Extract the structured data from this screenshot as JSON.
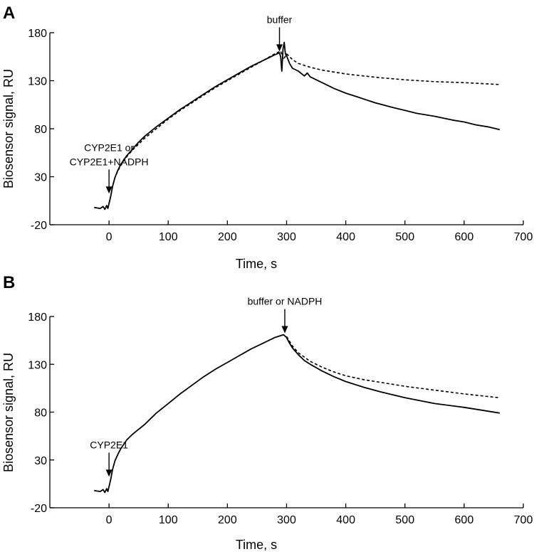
{
  "chart_data": [
    {
      "type": "line",
      "panel_label": "A",
      "title": "",
      "xlabel": "Time, s",
      "ylabel": "Biosensor signal, RU",
      "xlim": [
        -100,
        700
      ],
      "ylim": [
        -20,
        180
      ],
      "xticks": [
        0,
        100,
        200,
        300,
        400,
        500,
        600,
        700
      ],
      "yticks": [
        -20,
        30,
        80,
        130,
        180
      ],
      "grid": false,
      "legend": "none",
      "series": [
        {
          "line_style": "solid",
          "x": [
            -25,
            -15,
            -10,
            -7,
            -4,
            -2,
            0,
            3,
            6,
            10,
            15,
            20,
            30,
            40,
            50,
            60,
            80,
            100,
            120,
            140,
            160,
            180,
            200,
            220,
            240,
            260,
            280,
            288,
            290,
            292,
            294,
            296,
            298,
            300,
            305,
            310,
            320,
            330,
            335,
            340,
            350,
            360,
            380,
            400,
            420,
            450,
            480,
            500,
            520,
            550,
            580,
            600,
            620,
            640,
            660
          ],
          "y": [
            -2,
            -3,
            -1,
            -4,
            0,
            -3,
            2,
            10,
            20,
            29,
            37,
            43,
            52,
            59,
            66,
            72,
            82,
            91,
            100,
            108,
            116,
            124,
            131,
            138,
            145,
            151,
            157,
            159,
            155,
            140,
            163,
            170,
            158,
            156,
            148,
            143,
            140,
            135,
            138,
            134,
            131,
            128,
            122,
            117,
            113,
            107,
            102,
            99,
            96,
            93,
            89,
            87,
            84,
            82,
            79
          ]
        },
        {
          "line_style": "dashed",
          "x": [
            0,
            3,
            6,
            10,
            15,
            20,
            30,
            40,
            50,
            60,
            80,
            100,
            120,
            140,
            160,
            180,
            200,
            220,
            240,
            260,
            280,
            290,
            295,
            300,
            310,
            320,
            340,
            360,
            380,
            400,
            430,
            460,
            500,
            550,
            600,
            660
          ],
          "y": [
            2,
            10,
            20,
            29,
            36,
            42,
            51,
            58,
            64,
            70,
            80,
            90,
            99,
            107,
            115,
            123,
            130,
            137,
            144,
            151,
            158,
            161,
            152,
            158,
            152,
            148,
            144,
            141,
            139,
            137,
            135,
            133,
            131,
            129,
            128,
            126
          ]
        }
      ],
      "annotations": [
        {
          "lines": [
            "CYP2E1 or",
            "CYP2E1+NADPH"
          ],
          "x": 0
        },
        {
          "lines": [
            "buffer"
          ],
          "x": 288
        }
      ]
    },
    {
      "type": "line",
      "panel_label": "B",
      "title": "",
      "xlabel": "Time, s",
      "ylabel": "Biosensor signal, RU",
      "xlim": [
        -100,
        700
      ],
      "ylim": [
        -20,
        180
      ],
      "xticks": [
        0,
        100,
        200,
        300,
        400,
        500,
        600,
        700
      ],
      "yticks": [
        -20,
        30,
        80,
        130,
        180
      ],
      "grid": false,
      "legend": "none",
      "series": [
        {
          "line_style": "solid",
          "x": [
            -25,
            -15,
            -10,
            -7,
            -4,
            -2,
            0,
            3,
            6,
            10,
            15,
            20,
            30,
            40,
            50,
            60,
            80,
            100,
            120,
            140,
            160,
            180,
            200,
            220,
            240,
            260,
            280,
            295,
            300,
            305,
            310,
            320,
            330,
            340,
            360,
            380,
            400,
            430,
            460,
            500,
            550,
            600,
            660
          ],
          "y": [
            -2,
            -3,
            -1,
            -4,
            0,
            -3,
            2,
            10,
            20,
            29,
            36,
            42,
            51,
            57,
            62,
            67,
            79,
            89,
            99,
            108,
            117,
            125,
            132,
            139,
            146,
            152,
            158,
            161,
            158,
            152,
            147,
            140,
            134,
            130,
            123,
            117,
            112,
            106,
            101,
            95,
            89,
            85,
            79
          ]
        },
        {
          "line_style": "dashed",
          "x": [
            300,
            310,
            320,
            340,
            360,
            380,
            400,
            430,
            460,
            500,
            550,
            600,
            660
          ],
          "y": [
            159,
            149,
            142,
            133,
            127,
            122,
            118,
            114,
            111,
            107,
            103,
            99,
            95
          ]
        }
      ],
      "annotations": [
        {
          "lines": [
            "CYP2E1"
          ],
          "x": 0
        },
        {
          "lines": [
            "buffer or NADPH"
          ],
          "x": 297
        }
      ]
    }
  ]
}
